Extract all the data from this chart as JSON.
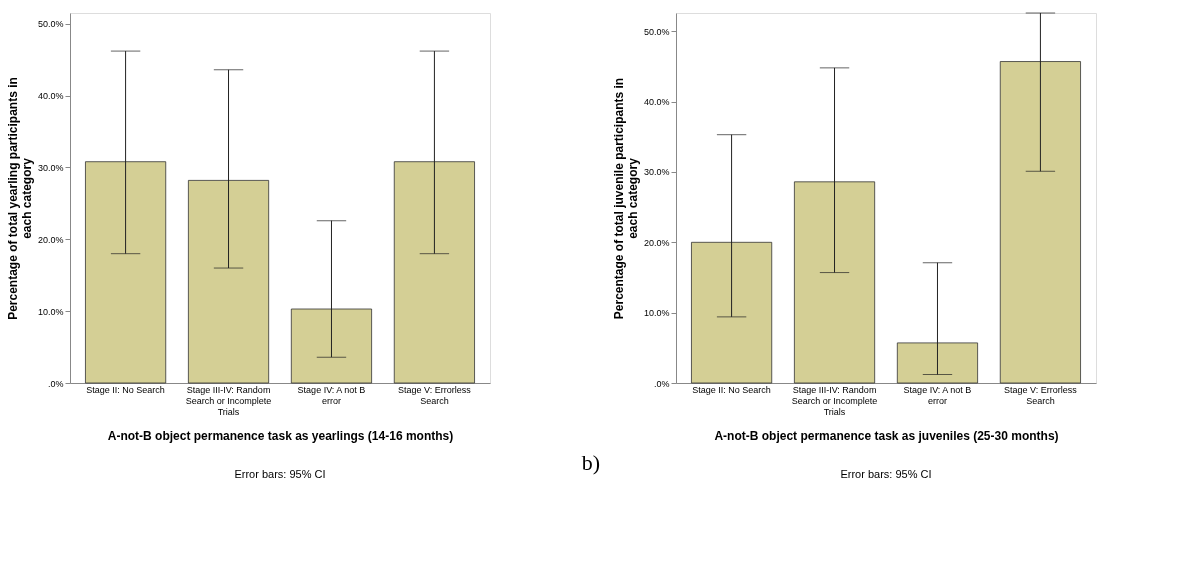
{
  "chart_data": [
    {
      "type": "bar",
      "categories": [
        "Stage II: No Search",
        "Stage III-IV: Random Search or Incomplete Trials",
        "Stage IV: A not B error",
        "Stage V: Errorless Search"
      ],
      "values": [
        30.8,
        28.2,
        10.3,
        30.8
      ],
      "color": "#d4cf95",
      "errors": [
        [
          18.0,
          46.2
        ],
        [
          16.0,
          43.6
        ],
        [
          3.6,
          22.6
        ],
        [
          18.0,
          46.2
        ]
      ],
      "xlabel": "A-not-B object permanence task as yearlings (14-16 months)",
      "ylabel": "Percentage of total yearling participants in each category",
      "ylim": [
        0,
        51.5
      ],
      "yticks": [
        {
          "value": 0,
          "label": ".0%"
        },
        {
          "value": 10,
          "label": "10.0%"
        },
        {
          "value": 20,
          "label": "20.0%"
        },
        {
          "value": 30,
          "label": "30.0%"
        },
        {
          "value": 40,
          "label": "40.0%"
        },
        {
          "value": 50,
          "label": "50.0%"
        }
      ],
      "grid": false,
      "annotations": [
        "Error bars: 95% CI"
      ]
    },
    {
      "type": "bar",
      "categories": [
        "Stage II: No Search",
        "Stage III-IV: Random Search or Incomplete Trials",
        "Stage IV: A not B error",
        "Stage V: Errorless Search"
      ],
      "values": [
        20.0,
        28.6,
        5.7,
        45.7
      ],
      "color": "#d4cf95",
      "errors": [
        [
          9.4,
          35.3
        ],
        [
          15.7,
          44.8
        ],
        [
          1.2,
          17.1
        ],
        [
          30.1,
          52.6
        ]
      ],
      "xlabel": "A-not-B object permanence task as juveniles (25-30 months)",
      "ylabel": "Percentage of total juvenile participants in each category",
      "ylim": [
        0,
        52.6
      ],
      "yticks": [
        {
          "value": 0,
          "label": ".0%"
        },
        {
          "value": 10,
          "label": "10.0%"
        },
        {
          "value": 20,
          "label": "20.0%"
        },
        {
          "value": 30,
          "label": "30.0%"
        },
        {
          "value": 40,
          "label": "40.0%"
        },
        {
          "value": 50,
          "label": "50.0%"
        }
      ],
      "grid": false,
      "annotations": [
        "Error bars: 95% CI",
        "b)"
      ]
    }
  ]
}
